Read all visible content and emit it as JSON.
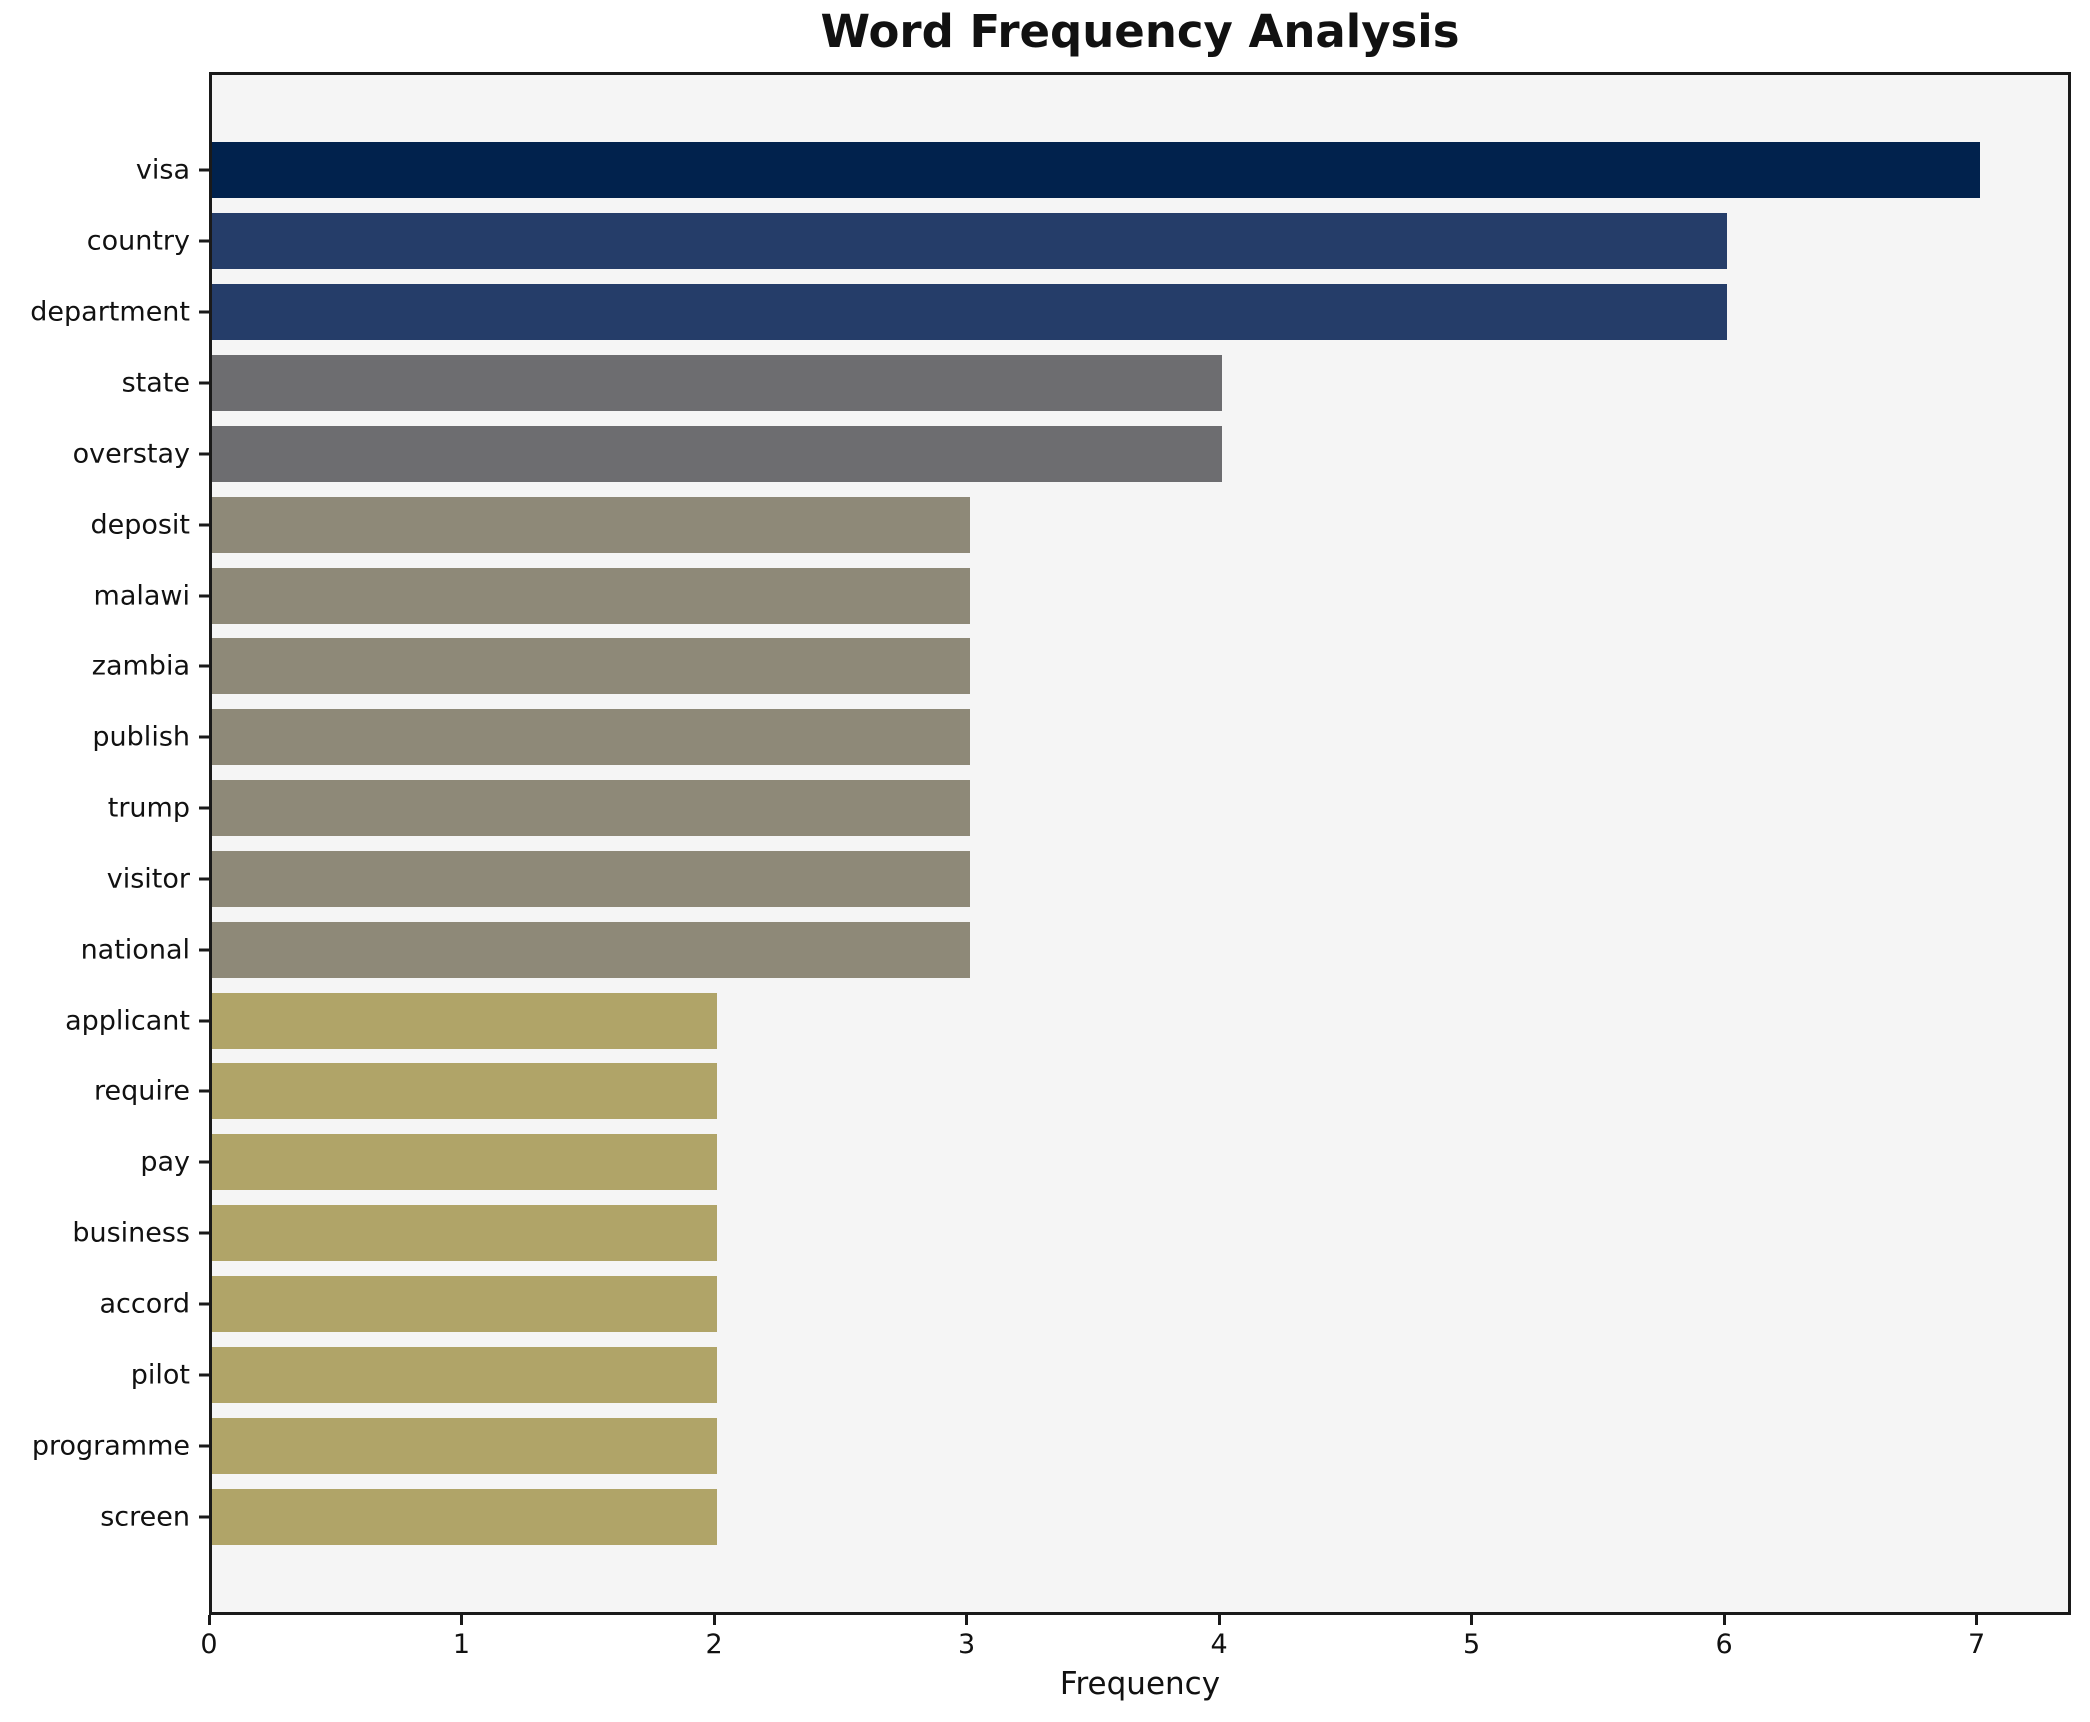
{
  "chart_data": {
    "type": "bar",
    "orientation": "horizontal",
    "title": "Word Frequency Analysis",
    "xlabel": "Frequency",
    "ylabel": "",
    "categories": [
      "visa",
      "country",
      "department",
      "state",
      "overstay",
      "deposit",
      "malawi",
      "zambia",
      "publish",
      "trump",
      "visitor",
      "national",
      "applicant",
      "require",
      "pay",
      "business",
      "accord",
      "pilot",
      "programme",
      "screen"
    ],
    "values": [
      7,
      6,
      6,
      4,
      4,
      3,
      3,
      3,
      3,
      3,
      3,
      3,
      2,
      2,
      2,
      2,
      2,
      2,
      2,
      2
    ],
    "bar_colors": [
      "#01224d",
      "#253d69",
      "#253d69",
      "#6d6d70",
      "#6d6d70",
      "#8e8978",
      "#8e8978",
      "#8e8978",
      "#8e8978",
      "#8e8978",
      "#8e8978",
      "#8e8978",
      "#b0a468",
      "#b0a468",
      "#b0a468",
      "#b0a468",
      "#b0a468",
      "#b0a468",
      "#b0a468",
      "#b0a468"
    ],
    "xlim": [
      0,
      7.35
    ],
    "x_ticks": [
      0,
      1,
      2,
      3,
      4,
      5,
      6,
      7
    ],
    "grid": false,
    "legend": false,
    "plot_background": "#f5f5f5",
    "figure_background": "#ffffff",
    "spine_color": "#1a1a1a"
  }
}
